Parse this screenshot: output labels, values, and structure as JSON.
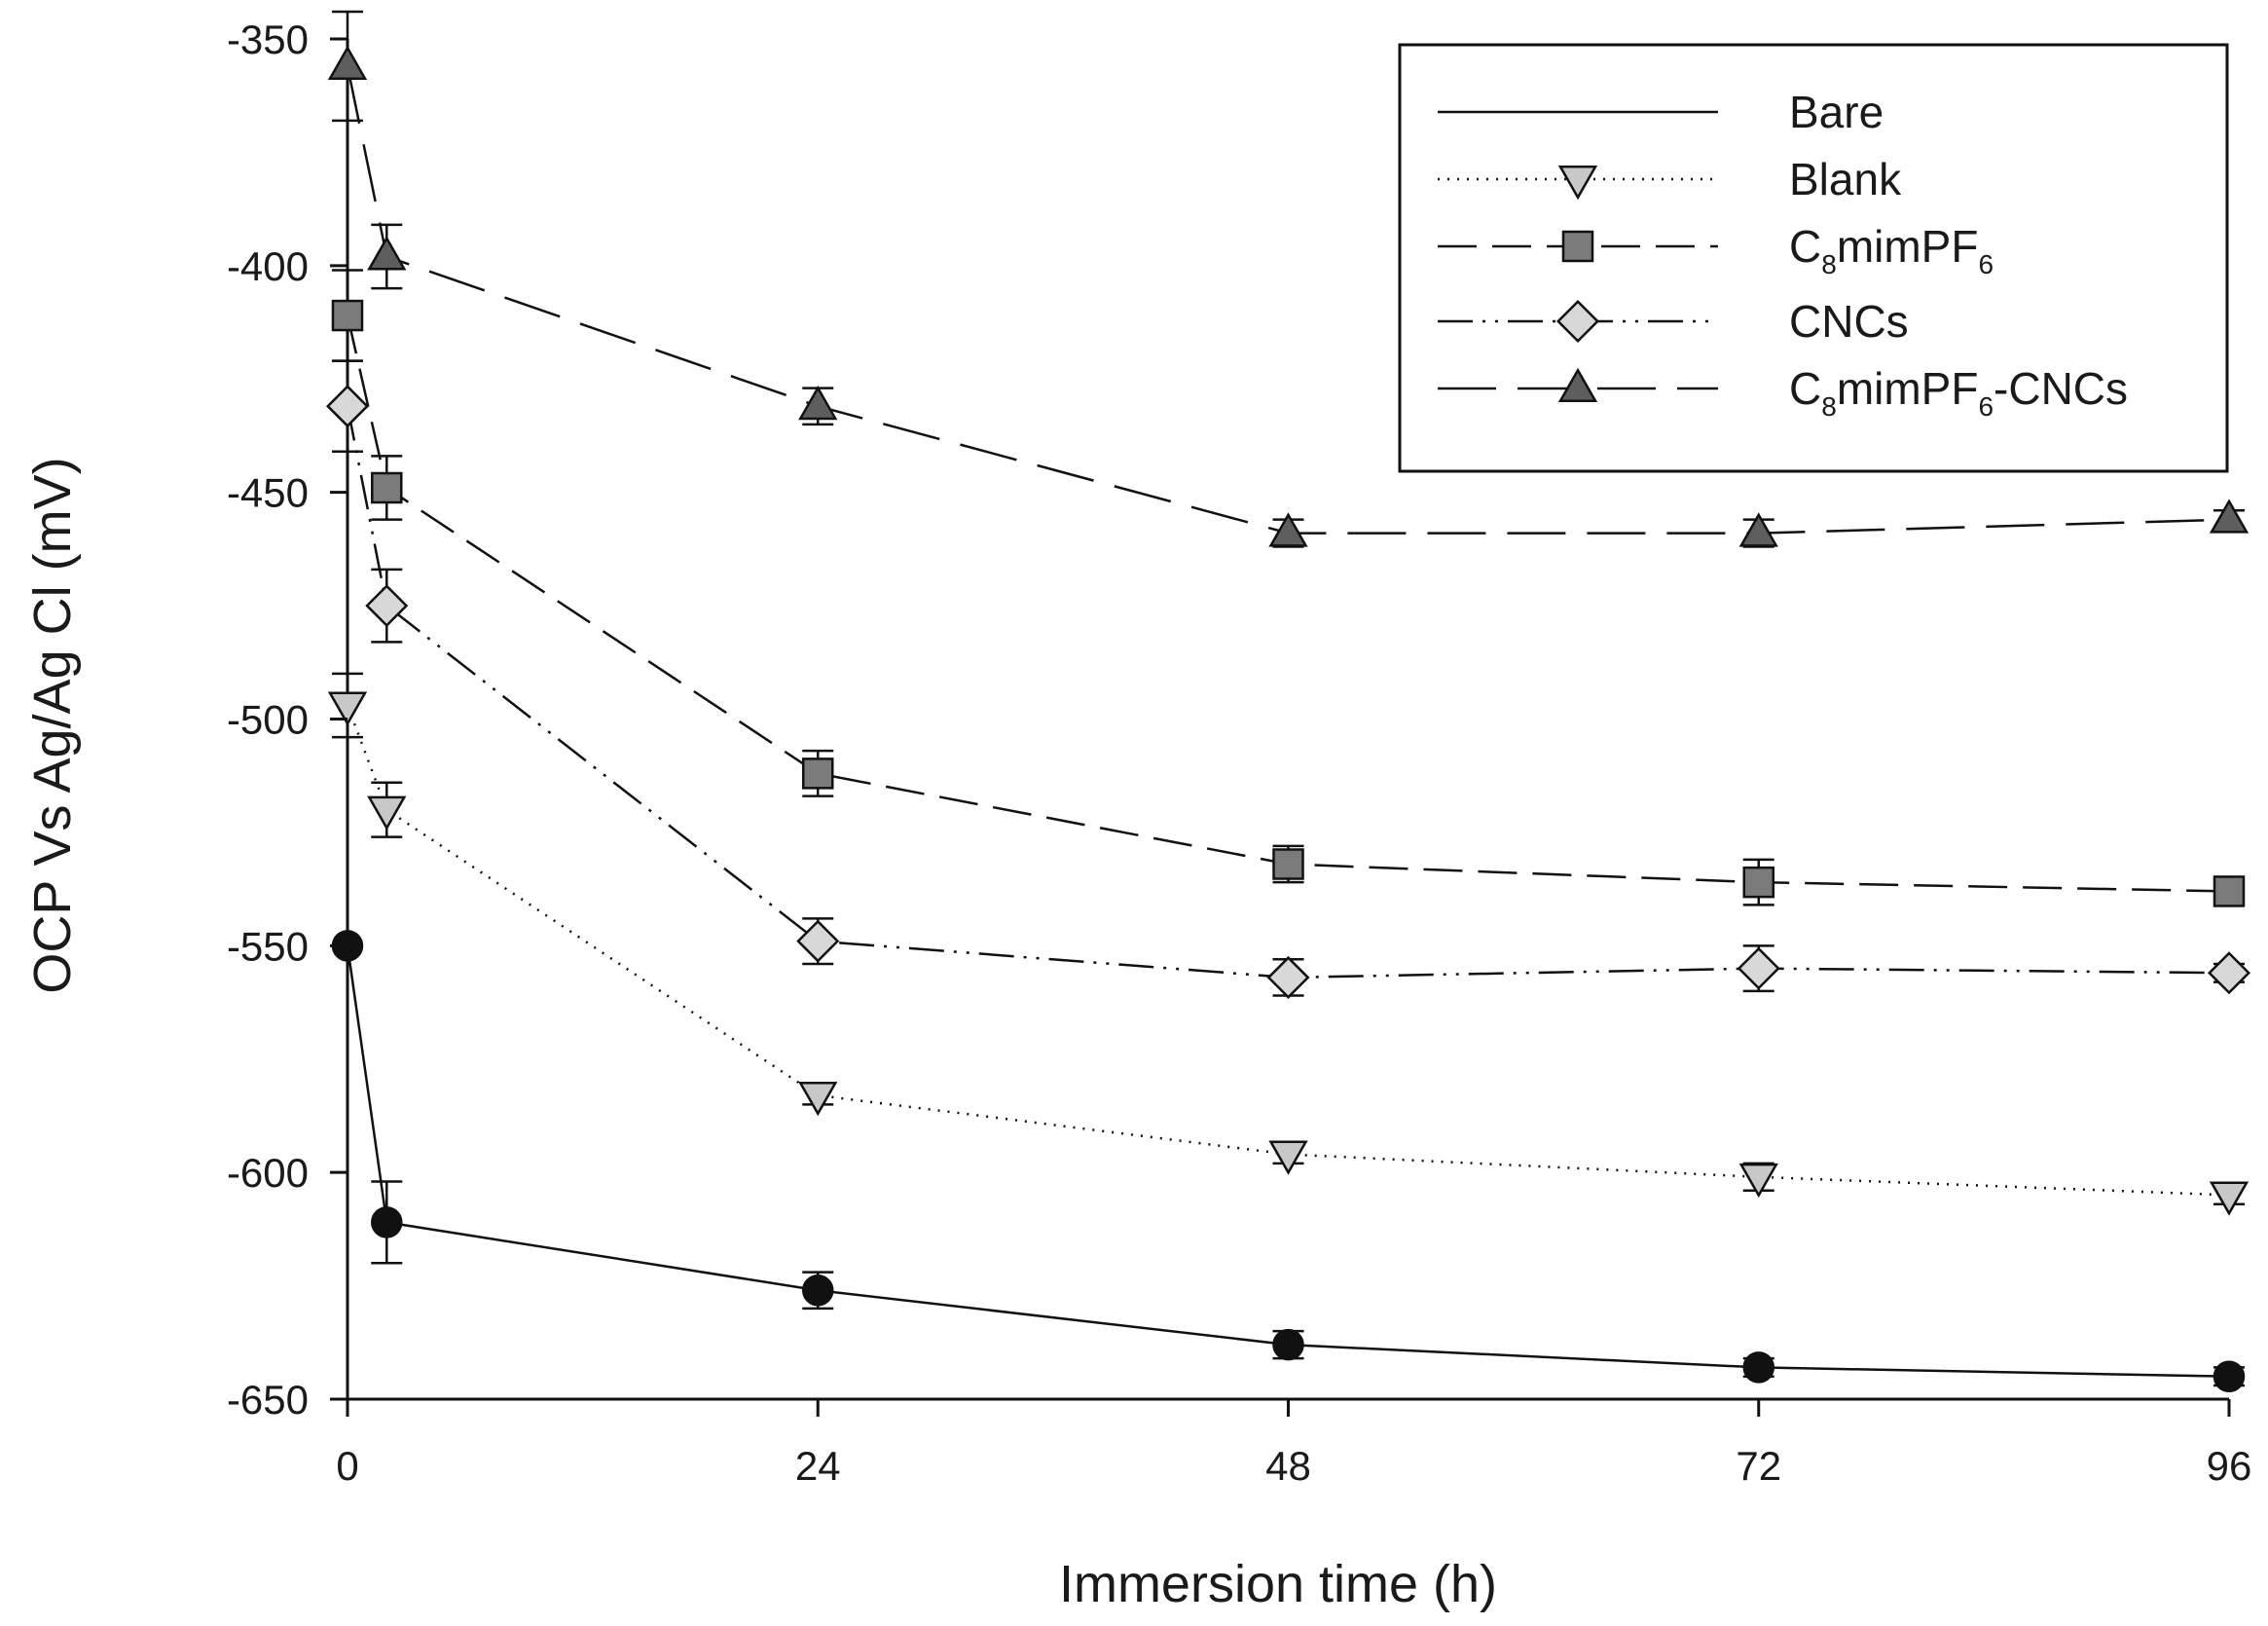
{
  "chart_data": {
    "type": "line",
    "title": "",
    "xlabel": "Immersion time (h)",
    "ylabel": "OCP Vs Ag/Ag Cl (mV)",
    "xlim": [
      0,
      96
    ],
    "ylim": [
      -650,
      -350
    ],
    "x_ticks": [
      0,
      24,
      48,
      72,
      96
    ],
    "y_ticks": [
      -350,
      -400,
      -450,
      -500,
      -550,
      -600,
      -650
    ],
    "grid": false,
    "legend_position": "top-right",
    "x": [
      0,
      2,
      24,
      48,
      72,
      96
    ],
    "series": [
      {
        "name": "Bare",
        "legend_label": {
          "main": "Bare"
        },
        "marker": "circle",
        "marker_fill": "#111111",
        "dash": "",
        "values": [
          -550,
          -611,
          -626,
          -638,
          -643,
          -645
        ],
        "errors": [
          0,
          9,
          4,
          3,
          2,
          2
        ]
      },
      {
        "name": "Blank",
        "legend_label": {
          "main": "Blank"
        },
        "marker": "triangle-down",
        "marker_fill": "#c8c8c8",
        "dash": "2,8",
        "values": [
          -497,
          -520,
          -583,
          -596,
          -601,
          -605
        ],
        "errors": [
          7,
          6,
          2,
          2,
          3,
          2
        ]
      },
      {
        "name": "C8mimPF6",
        "legend_label": {
          "p1": "C",
          "s1": "8",
          "p2": "mimPF",
          "s2": "6",
          "p3": ""
        },
        "marker": "square",
        "marker_fill": "#7a7a7a",
        "dash": "40,16",
        "values": [
          -411,
          -449,
          -512,
          -532,
          -536,
          -538
        ],
        "errors": [
          10,
          7,
          5,
          4,
          5,
          2
        ]
      },
      {
        "name": "CNCs",
        "legend_label": {
          "main": "CNCs"
        },
        "marker": "diamond",
        "marker_fill": "#d8d8d8",
        "dash": "36,10,3,10,3,10",
        "values": [
          -431,
          -475,
          -549,
          -557,
          -555,
          -556
        ],
        "errors": [
          10,
          8,
          5,
          4,
          5,
          2
        ]
      },
      {
        "name": "C8mimPF6-CNCs",
        "legend_label": {
          "p1": "C",
          "s1": "8",
          "p2": "mimPF",
          "s2": "6",
          "p3": "-CNCs"
        },
        "marker": "triangle-up",
        "marker_fill": "#5e5e5e",
        "dash": "60,22",
        "values": [
          -356,
          -398,
          -431,
          -459,
          -459,
          -456
        ],
        "errors": [
          12,
          7,
          4,
          3,
          3,
          2
        ]
      }
    ]
  }
}
